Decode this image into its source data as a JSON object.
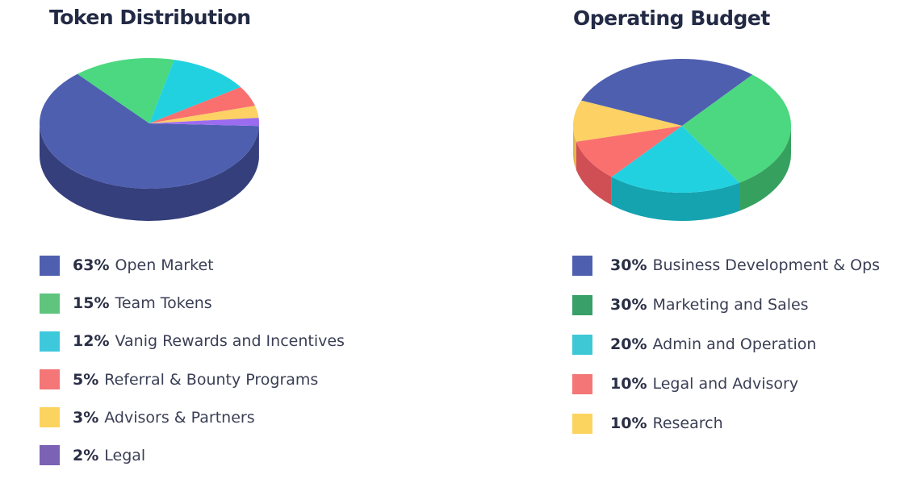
{
  "chart_data": [
    {
      "type": "pie",
      "title": "Token Distribution",
      "slices": [
        {
          "label": "Open Market",
          "value": 63,
          "pct_label": "63%",
          "color": "#4f5fb0",
          "side_color": "#353f7c",
          "swatch": "#4f5fb0"
        },
        {
          "label": "Team Tokens",
          "value": 15,
          "pct_label": "15%",
          "color": "#4bd880",
          "side_color": "#36a15f",
          "swatch": "#5fc47e"
        },
        {
          "label": "Vanig Rewards and Incentives",
          "value": 12,
          "pct_label": "12%",
          "color": "#22d1e0",
          "side_color": "#15a3b0",
          "swatch": "#3ec8dc"
        },
        {
          "label": "Referral & Bounty Programs",
          "value": 5,
          "pct_label": "5%",
          "color": "#f9706f",
          "side_color": "#cf4f55",
          "swatch": "#f47676"
        },
        {
          "label": "Advisors & Partners",
          "value": 3,
          "pct_label": "3%",
          "color": "#fdd163",
          "side_color": "#e3b54f",
          "swatch": "#fbd35f"
        },
        {
          "label": "Legal",
          "value": 2,
          "pct_label": "2%",
          "color": "#9b6cf0",
          "side_color": "#7650c4",
          "swatch": "#7b62b5"
        }
      ]
    },
    {
      "type": "pie",
      "title": "Operating Budget",
      "slices": [
        {
          "label": "Business Development & Ops",
          "value": 30,
          "pct_label": "30%",
          "color": "#4f5fb0",
          "side_color": "#353f7c",
          "swatch": "#4f5fb0"
        },
        {
          "label": "Marketing and Sales",
          "value": 30,
          "pct_label": "30%",
          "color": "#4bd880",
          "side_color": "#36a15f",
          "swatch": "#38a068"
        },
        {
          "label": "Admin and Operation",
          "value": 20,
          "pct_label": "20%",
          "color": "#22d1e0",
          "side_color": "#15a3b0",
          "swatch": "#3ec8d6"
        },
        {
          "label": "Legal and Advisory",
          "value": 10,
          "pct_label": "10%",
          "color": "#f9706f",
          "side_color": "#cf4f55",
          "swatch": "#f47676"
        },
        {
          "label": "Research",
          "value": 10,
          "pct_label": "10%",
          "color": "#fdd163",
          "side_color": "#e3b54f",
          "swatch": "#fbd35f"
        }
      ]
    }
  ]
}
